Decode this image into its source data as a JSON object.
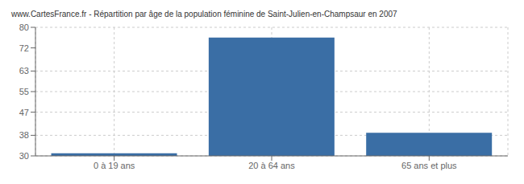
{
  "chart_data": {
    "type": "bar",
    "title": "www.CartesFrance.fr - Répartition par âge de la population féminine de Saint-Julien-en-Champsaur en 2007",
    "categories": [
      "0 à 19 ans",
      "20 à 64 ans",
      "65 ans et plus"
    ],
    "values": [
      31,
      76,
      39
    ],
    "color": "#3a6ea5",
    "ylim": [
      30,
      80
    ],
    "yticks": [
      30,
      38,
      47,
      55,
      63,
      72,
      80
    ],
    "grid": true
  }
}
